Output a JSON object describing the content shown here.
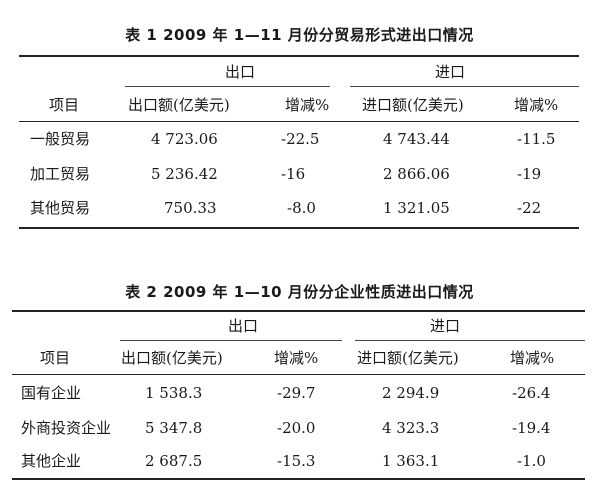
{
  "table1": {
    "caption": "表 1  2009 年 1—11 月份分贸易形式进出口情况",
    "group_export": "出口",
    "group_import": "进口",
    "headers": [
      "项目",
      "出口额(亿美元)",
      "增减%",
      "进口额(亿美元)",
      "增减%"
    ],
    "rows": [
      [
        "一般贸易",
        "4 723.06",
        "-22.5",
        "4 743.44",
        "-11.5"
      ],
      [
        "加工贸易",
        "5 236.42",
        "-16",
        "2 866.06",
        "-19"
      ],
      [
        "其他贸易",
        "750.33",
        "-8.0",
        "1 321.05",
        "-22"
      ]
    ]
  },
  "table2": {
    "caption": "表 2  2009 年 1—10 月份分企业性质进出口情况",
    "group_export": "出口",
    "group_import": "进口",
    "headers": [
      "项目",
      "出口额(亿美元)",
      "增减%",
      "进口额(亿美元)",
      "增减%"
    ],
    "rows": [
      [
        "国有企业",
        "1 538.3",
        "-29.7",
        "2 294.9",
        "-26.4"
      ],
      [
        "外商投资企业",
        "5 347.8",
        "-20.0",
        "4 323.3",
        "-19.4"
      ],
      [
        "其他企业",
        "2 687.5",
        "-15.3",
        "1 363.1",
        "-1.0"
      ]
    ]
  }
}
